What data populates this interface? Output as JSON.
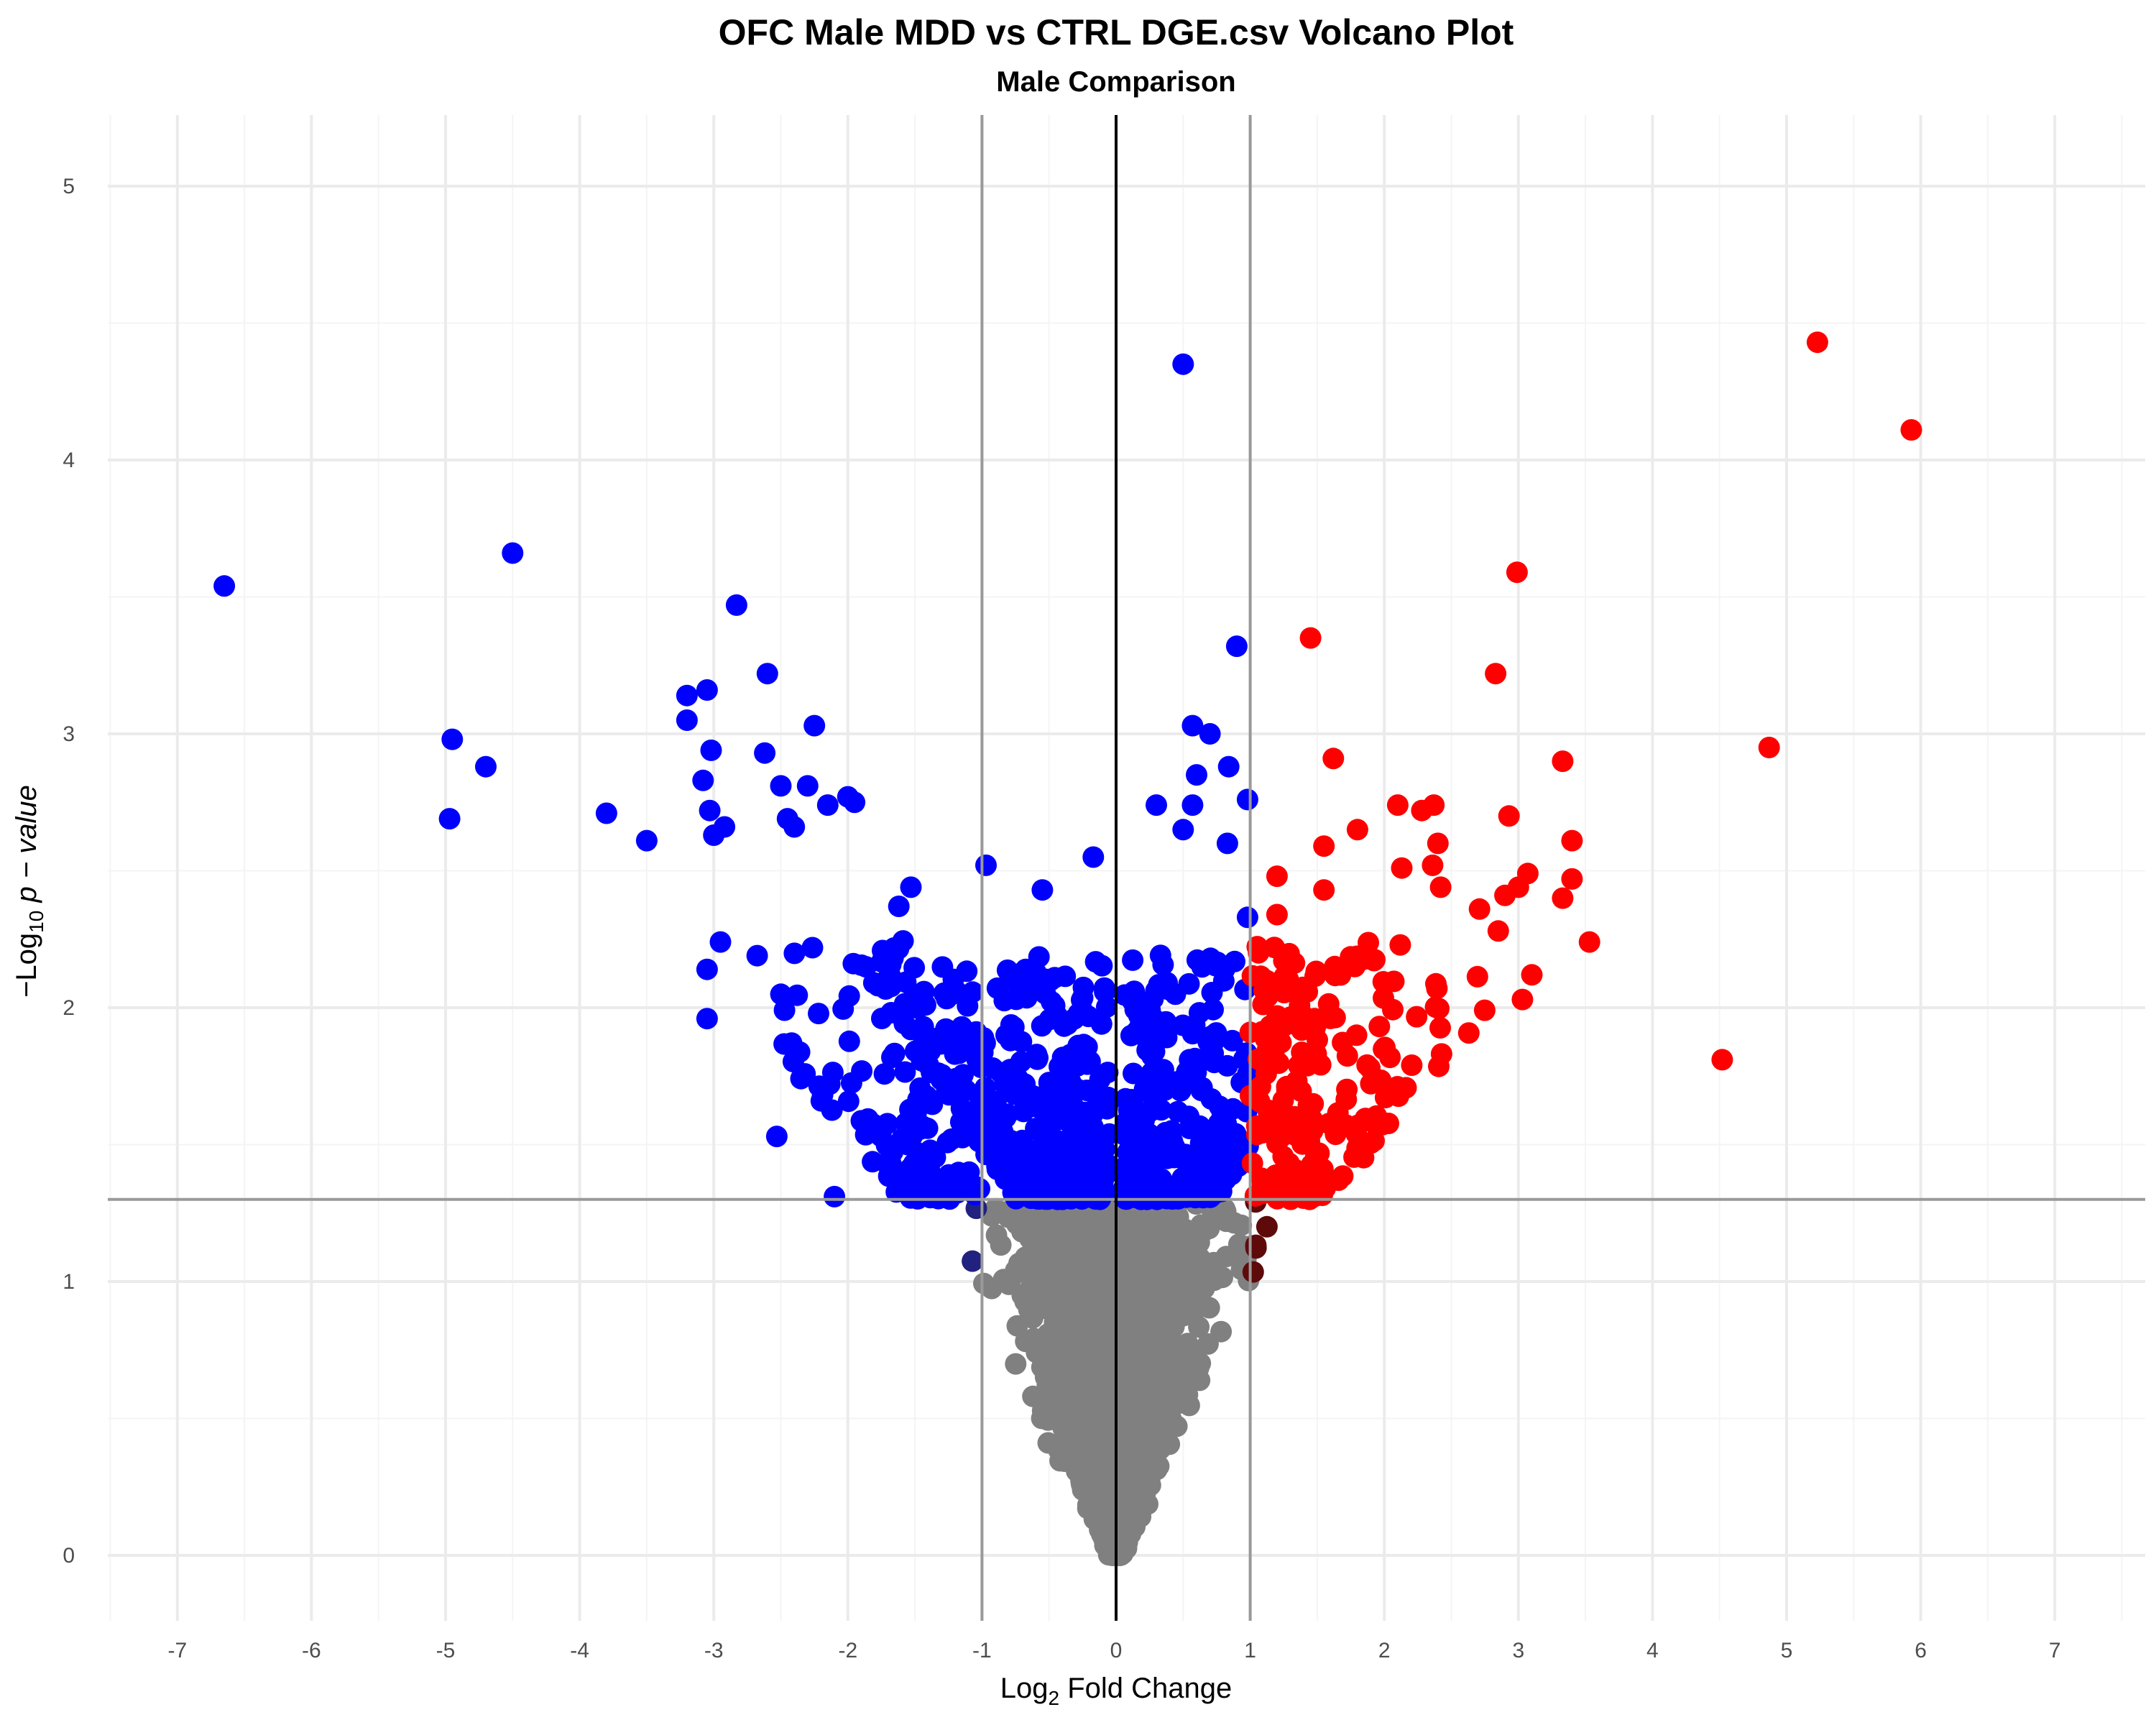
{
  "chart_data": {
    "type": "scatter",
    "title": "OFC Male MDD vs CTRL DGE.csv Volcano Plot",
    "subtitle": "Male Comparison",
    "xlabel": {
      "base": "Log",
      "sub": "2",
      "rest": " Fold Change"
    },
    "ylabel": {
      "prefix": "−Log",
      "sub": "10",
      "rest": " p − value"
    },
    "xlim": [
      -7.5,
      7.5
    ],
    "ylim": [
      -0.2,
      5.25
    ],
    "x_ticks": [
      -7,
      -6,
      -5,
      -4,
      -3,
      -2,
      -1,
      0,
      1,
      2,
      3,
      4,
      5,
      6,
      7
    ],
    "y_ticks": [
      0,
      1,
      2,
      3,
      4,
      5
    ],
    "x_tick_labels": [
      "-7",
      "-6",
      "-5",
      "-4",
      "-3",
      "-2",
      "-1",
      "0",
      "1",
      "2",
      "3",
      "4",
      "5",
      "6",
      "7"
    ],
    "y_tick_labels": [
      "0",
      "1",
      "2",
      "3",
      "4",
      "5"
    ],
    "thresholds": {
      "fold_change": [
        -1,
        1
      ],
      "p_value_line": 1.3,
      "center_line": 0
    },
    "colors": {
      "significant_up": "#ff0000",
      "significant_down": "#0000ff",
      "fc_only_up": "#5e0a0a",
      "fc_only_down": "#21217f",
      "not_significant": "#808080",
      "center_line": "#000000",
      "threshold_line": "#999999"
    },
    "outlier_points": [
      [
        -6.65,
        3.54
      ],
      [
        -4.5,
        3.66
      ],
      [
        -4.95,
        2.98
      ],
      [
        -4.97,
        2.69
      ],
      [
        -4.7,
        2.88
      ],
      [
        -3.8,
        2.71
      ],
      [
        -3.5,
        2.61
      ],
      [
        -2.83,
        3.47
      ],
      [
        -3.2,
        3.14
      ],
      [
        -3.2,
        3.05
      ],
      [
        -3.05,
        3.16
      ],
      [
        -3.08,
        2.83
      ],
      [
        -3.02,
        2.94
      ],
      [
        -3.03,
        2.72
      ],
      [
        -3.0,
        2.63
      ],
      [
        -2.92,
        2.66
      ],
      [
        -2.95,
        2.24
      ],
      [
        -3.05,
        2.14
      ],
      [
        -3.05,
        1.96
      ],
      [
        -2.6,
        3.22
      ],
      [
        -2.62,
        2.93
      ],
      [
        -2.5,
        2.81
      ],
      [
        -2.3,
        2.81
      ],
      [
        -2.45,
        2.69
      ],
      [
        -2.4,
        2.66
      ],
      [
        -2.25,
        3.03
      ],
      [
        -2.15,
        2.74
      ],
      [
        -2.0,
        2.77
      ],
      [
        -1.95,
        2.75
      ],
      [
        -2.53,
        1.53
      ],
      [
        -2.1,
        1.31
      ],
      [
        -1.53,
        2.44
      ],
      [
        -1.62,
        2.37
      ],
      [
        -0.97,
        2.52
      ],
      [
        -0.55,
        2.43
      ],
      [
        -0.17,
        2.55
      ],
      [
        0.5,
        4.35
      ],
      [
        0.9,
        3.32
      ],
      [
        0.57,
        3.03
      ],
      [
        0.7,
        3.0
      ],
      [
        0.84,
        2.88
      ],
      [
        0.6,
        2.85
      ],
      [
        0.98,
        2.76
      ],
      [
        0.3,
        2.74
      ],
      [
        0.57,
        2.74
      ],
      [
        0.83,
        2.6
      ],
      [
        0.5,
        2.65
      ],
      [
        0.98,
        2.33
      ],
      [
        5.23,
        4.43
      ],
      [
        5.93,
        4.11
      ],
      [
        2.99,
        3.59
      ],
      [
        1.45,
        3.35
      ],
      [
        2.83,
        3.22
      ],
      [
        4.87,
        2.95
      ],
      [
        1.62,
        2.91
      ],
      [
        3.33,
        2.9
      ],
      [
        2.1,
        2.74
      ],
      [
        2.28,
        2.72
      ],
      [
        2.37,
        2.74
      ],
      [
        2.93,
        2.7
      ],
      [
        1.8,
        2.65
      ],
      [
        1.55,
        2.59
      ],
      [
        2.4,
        2.6
      ],
      [
        3.4,
        2.61
      ],
      [
        1.2,
        2.48
      ],
      [
        1.55,
        2.43
      ],
      [
        3.4,
        2.47
      ],
      [
        3.07,
        2.49
      ],
      [
        3.0,
        2.44
      ],
      [
        2.9,
        2.41
      ],
      [
        3.33,
        2.4
      ],
      [
        2.13,
        2.51
      ],
      [
        2.36,
        2.52
      ],
      [
        2.42,
        2.44
      ],
      [
        2.71,
        2.36
      ],
      [
        2.85,
        2.28
      ],
      [
        3.53,
        2.24
      ],
      [
        3.1,
        2.12
      ],
      [
        3.03,
        2.03
      ],
      [
        1.78,
        2.15
      ],
      [
        1.2,
        2.34
      ],
      [
        1.18,
        2.22
      ],
      [
        4.52,
        1.81
      ],
      [
        1.0,
        1.91
      ],
      [
        1.13,
        2.04
      ],
      [
        1.48,
        1.96
      ]
    ]
  }
}
